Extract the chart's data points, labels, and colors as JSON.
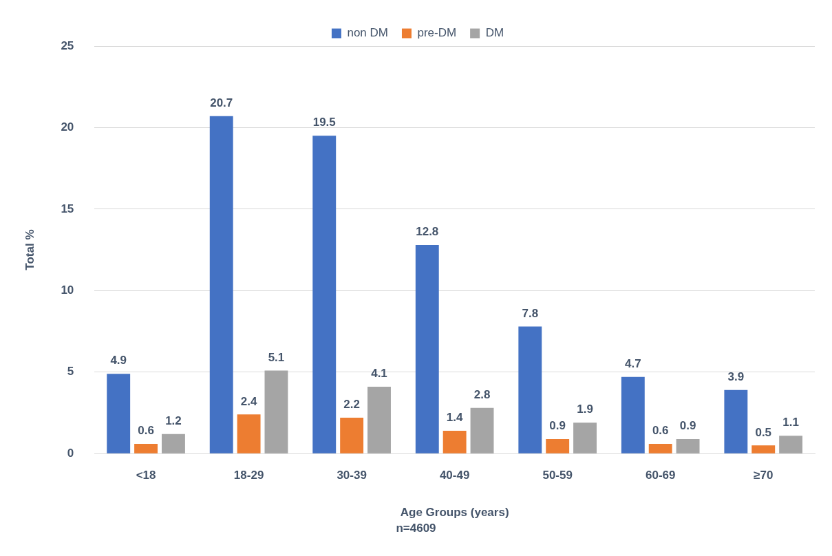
{
  "chart_data": {
    "type": "bar",
    "xlabel": "Age Groups (years)",
    "ylabel": "Total %",
    "categories": [
      "<18",
      "18-29",
      "30-39",
      "40-49",
      "50-59",
      "60-69",
      "≥70"
    ],
    "series": [
      {
        "name": "non DM",
        "color": "#4472c4",
        "values": [
          4.9,
          20.7,
          19.5,
          12.8,
          7.8,
          4.7,
          3.9
        ]
      },
      {
        "name": "pre-DM",
        "color": "#ed7d31",
        "values": [
          0.6,
          2.4,
          2.2,
          1.4,
          0.9,
          0.6,
          0.5
        ]
      },
      {
        "name": "DM",
        "color": "#a5a5a5",
        "values": [
          1.2,
          5.1,
          4.1,
          2.8,
          1.9,
          0.9,
          1.1
        ]
      }
    ],
    "ylim": [
      0,
      25
    ],
    "yticks": [
      0,
      5,
      10,
      15,
      20,
      25
    ],
    "grid": "y",
    "legend": "top",
    "data_labels": true,
    "annotations": [
      "n=4609"
    ]
  }
}
